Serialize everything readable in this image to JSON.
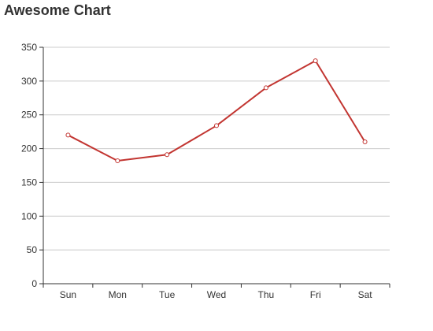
{
  "chart_data": {
    "type": "line",
    "title": "Awesome Chart",
    "xlabel": "",
    "ylabel": "",
    "categories": [
      "Sun",
      "Mon",
      "Tue",
      "Wed",
      "Thu",
      "Fri",
      "Sat"
    ],
    "series": [
      {
        "values": [
          220,
          182,
          191,
          234,
          290,
          330,
          210
        ]
      }
    ],
    "ylim": [
      0,
      350
    ],
    "yticks": [
      0,
      50,
      100,
      150,
      200,
      250,
      300,
      350
    ],
    "grid": true,
    "legend": "none",
    "colors": {
      "line": "#c23531",
      "grid": "#cccccc",
      "axis": "#333333"
    }
  }
}
